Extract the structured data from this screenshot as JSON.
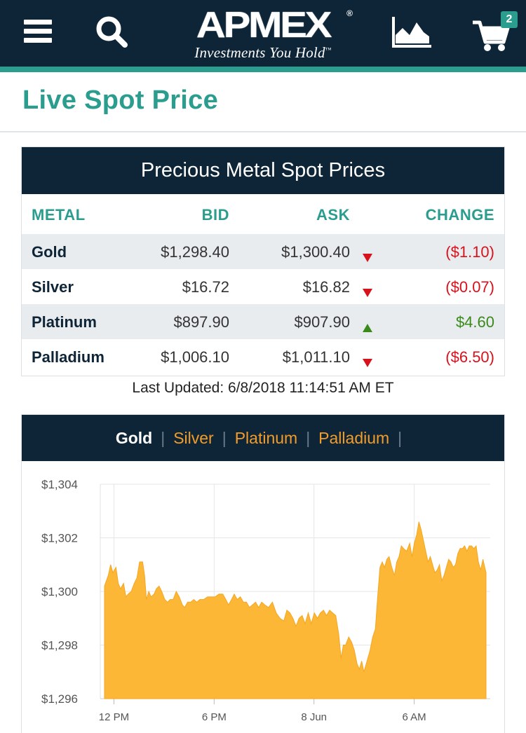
{
  "header": {
    "logo_text": "APMEX",
    "logo_registered": "®",
    "tagline": "Investments You Hold",
    "tagline_tm": "™",
    "cart_count": "2",
    "colors": {
      "navy": "#0d2537",
      "teal": "#2a9d8f"
    },
    "icons": [
      "hamburger-menu-icon",
      "search-icon",
      "area-chart-icon",
      "shopping-cart-icon"
    ]
  },
  "page": {
    "title": "Live Spot Price"
  },
  "spot_table": {
    "heading": "Precious Metal Spot Prices",
    "columns": [
      "METAL",
      "BID",
      "ASK",
      "CHANGE"
    ],
    "rows": [
      {
        "metal": "Gold",
        "bid": "$1,298.40",
        "ask": "$1,300.40",
        "trend": "down",
        "change": "($1.10)"
      },
      {
        "metal": "Silver",
        "bid": "$16.72",
        "ask": "$16.82",
        "trend": "down",
        "change": "($0.07)"
      },
      {
        "metal": "Platinum",
        "bid": "$897.90",
        "ask": "$907.90",
        "trend": "up",
        "change": "$4.60"
      },
      {
        "metal": "Palladium",
        "bid": "$1,006.10",
        "ask": "$1,011.10",
        "trend": "down",
        "change": "($6.50)"
      }
    ],
    "last_updated": "Last Updated: 6/8/2018 11:14:51 AM ET"
  },
  "chart_tabs": {
    "items": [
      "Gold",
      "Silver",
      "Platinum",
      "Palladium"
    ],
    "active": "Gold",
    "colors": {
      "active": "#ffffff",
      "inactive": "#f39c2a"
    }
  },
  "chart_data": {
    "type": "area",
    "ylim": [
      1296,
      1304
    ],
    "yticks": [
      1296,
      1298,
      1300,
      1302,
      1304
    ],
    "ytick_labels": [
      "$1,296",
      "$1,298",
      "$1,300",
      "$1,302",
      "$1,304"
    ],
    "xlim": [
      0,
      100
    ],
    "xticks": [
      {
        "x": 3.5,
        "label": "12 PM"
      },
      {
        "x": 29.2,
        "label": "6 PM"
      },
      {
        "x": 54.8,
        "label": "8 Jun"
      },
      {
        "x": 80.5,
        "label": "6 AM"
      }
    ],
    "fill_color": "#fbb735",
    "grid": true,
    "series": [
      {
        "values": [
          [
            0,
            1300.2
          ],
          [
            0.5,
            1300.4
          ],
          [
            1,
            1300.6
          ],
          [
            1.6,
            1301.0
          ],
          [
            2.2,
            1300.7
          ],
          [
            3,
            1300.9
          ],
          [
            3.6,
            1300.3
          ],
          [
            4.2,
            1300.1
          ],
          [
            5,
            1300.3
          ],
          [
            5.6,
            1299.8
          ],
          [
            6.2,
            1299.9
          ],
          [
            7,
            1300.0
          ],
          [
            7.8,
            1300.3
          ],
          [
            8.5,
            1300.5
          ],
          [
            9.2,
            1301.1
          ],
          [
            10,
            1301.1
          ],
          [
            10.5,
            1300.6
          ],
          [
            11,
            1299.7
          ],
          [
            11.6,
            1300.0
          ],
          [
            12.2,
            1299.8
          ],
          [
            13,
            1299.9
          ],
          [
            13.6,
            1300.1
          ],
          [
            14.3,
            1300.2
          ],
          [
            15,
            1300.0
          ],
          [
            15.8,
            1299.7
          ],
          [
            16.5,
            1299.6
          ],
          [
            17.2,
            1299.7
          ],
          [
            18,
            1299.7
          ],
          [
            18.8,
            1300.0
          ],
          [
            19.6,
            1299.8
          ],
          [
            20.4,
            1299.5
          ],
          [
            21,
            1299.4
          ],
          [
            21.8,
            1299.6
          ],
          [
            22.6,
            1299.6
          ],
          [
            23.4,
            1299.7
          ],
          [
            24.2,
            1299.6
          ],
          [
            25,
            1299.7
          ],
          [
            26,
            1299.7
          ],
          [
            27,
            1299.8
          ],
          [
            28,
            1299.8
          ],
          [
            29,
            1299.8
          ],
          [
            30,
            1299.9
          ],
          [
            31,
            1299.9
          ],
          [
            31.8,
            1299.7
          ],
          [
            32.5,
            1299.5
          ],
          [
            33.3,
            1299.7
          ],
          [
            34,
            1299.9
          ],
          [
            34.8,
            1299.7
          ],
          [
            35.6,
            1299.8
          ],
          [
            36.4,
            1299.6
          ],
          [
            37.2,
            1299.6
          ],
          [
            38,
            1299.4
          ],
          [
            38.8,
            1299.5
          ],
          [
            39.6,
            1299.6
          ],
          [
            40.4,
            1299.4
          ],
          [
            41.2,
            1299.6
          ],
          [
            42,
            1299.5
          ],
          [
            43,
            1299.4
          ],
          [
            44,
            1299.6
          ],
          [
            45,
            1299.2
          ],
          [
            46,
            1299.0
          ],
          [
            47,
            1298.9
          ],
          [
            47.8,
            1299.3
          ],
          [
            48.6,
            1299.2
          ],
          [
            49.4,
            1299.0
          ],
          [
            50.2,
            1298.7
          ],
          [
            51,
            1299.0
          ],
          [
            51.8,
            1299.1
          ],
          [
            52.6,
            1298.8
          ],
          [
            53.4,
            1299.2
          ],
          [
            54.2,
            1298.8
          ],
          [
            55,
            1299.2
          ],
          [
            55.8,
            1299.0
          ],
          [
            56.6,
            1299.2
          ],
          [
            57.4,
            1299.3
          ],
          [
            58.2,
            1299.1
          ],
          [
            59,
            1299.3
          ],
          [
            59.8,
            1299.2
          ],
          [
            60.6,
            1299.1
          ],
          [
            61.4,
            1298.4
          ],
          [
            62,
            1297.5
          ],
          [
            62.6,
            1298.0
          ],
          [
            63.2,
            1298.0
          ],
          [
            64,
            1298.3
          ],
          [
            64.8,
            1298.1
          ],
          [
            65.5,
            1297.8
          ],
          [
            66.2,
            1297.3
          ],
          [
            66.8,
            1297.1
          ],
          [
            67.4,
            1297.4
          ],
          [
            68,
            1297.0
          ],
          [
            68.8,
            1297.4
          ],
          [
            69.6,
            1297.8
          ],
          [
            70.3,
            1298.3
          ],
          [
            71,
            1298.6
          ],
          [
            71.6,
            1299.8
          ],
          [
            72.2,
            1300.9
          ],
          [
            72.8,
            1301.1
          ],
          [
            73.4,
            1300.9
          ],
          [
            74,
            1301.2
          ],
          [
            74.6,
            1301.3
          ],
          [
            75.3,
            1300.9
          ],
          [
            76,
            1300.6
          ],
          [
            76.6,
            1301.1
          ],
          [
            77.2,
            1301.3
          ],
          [
            77.8,
            1301.7
          ],
          [
            78.4,
            1301.6
          ],
          [
            79.2,
            1301.5
          ],
          [
            80,
            1301.8
          ],
          [
            80.6,
            1301.3
          ],
          [
            81.2,
            1301.8
          ],
          [
            81.8,
            1302.1
          ],
          [
            82.4,
            1302.6
          ],
          [
            83,
            1302.3
          ],
          [
            83.6,
            1301.9
          ],
          [
            84.2,
            1301.5
          ],
          [
            84.8,
            1301.1
          ],
          [
            85.4,
            1301.3
          ],
          [
            86,
            1301.0
          ],
          [
            86.6,
            1300.7
          ],
          [
            87.2,
            1300.8
          ],
          [
            87.8,
            1301.0
          ],
          [
            88.4,
            1300.4
          ],
          [
            89,
            1300.6
          ],
          [
            89.6,
            1300.9
          ],
          [
            90.2,
            1301.2
          ],
          [
            90.8,
            1301.1
          ],
          [
            91.4,
            1300.9
          ],
          [
            92,
            1301.0
          ],
          [
            92.6,
            1301.4
          ],
          [
            93.2,
            1301.6
          ],
          [
            93.8,
            1301.6
          ],
          [
            94.4,
            1301.7
          ],
          [
            95,
            1301.5
          ],
          [
            95.6,
            1301.7
          ],
          [
            96.2,
            1301.7
          ],
          [
            96.8,
            1301.6
          ],
          [
            97.4,
            1301.7
          ],
          [
            98,
            1301.1
          ],
          [
            98.6,
            1300.8
          ],
          [
            99.2,
            1301.2
          ],
          [
            100,
            1300.7
          ]
        ]
      }
    ]
  }
}
